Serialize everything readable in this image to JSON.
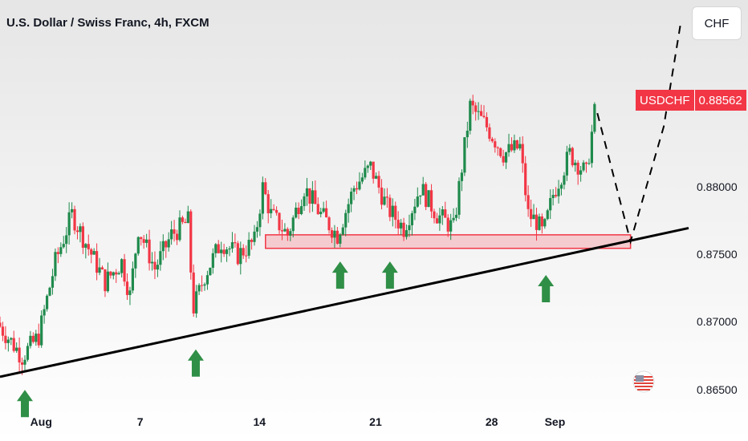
{
  "header": {
    "title": "U.S. Dollar / Swiss Franc, 4h, FXCM"
  },
  "toolbar": {
    "currency_label": "CHF"
  },
  "price_badge": {
    "symbol": "USDCHF",
    "value": "0.88562"
  },
  "colors": {
    "up": "#1f8a4c",
    "down": "#f23645",
    "zone": "#f4a9b0",
    "arrow": "#2f8f46"
  },
  "chart_data": {
    "type": "candlestick",
    "y_axis": {
      "ticks": [
        "0.88000",
        "0.87500",
        "0.87000",
        "0.86500"
      ],
      "tick_values": [
        0.88,
        0.875,
        0.87,
        0.865
      ],
      "ylim": [
        0.8635,
        0.8915
      ]
    },
    "x_axis": {
      "ticks": [
        "Aug",
        "7",
        "14",
        "21",
        "28",
        "Sep"
      ],
      "tick_days": [
        1,
        7,
        14,
        21,
        28,
        32
      ],
      "xlim": [
        -1.5,
        40
      ]
    },
    "path": [
      [
        -1.5,
        0.87
      ],
      [
        0,
        0.8675
      ],
      [
        1,
        0.869
      ],
      [
        2,
        0.8745
      ],
      [
        3,
        0.878
      ],
      [
        4,
        0.8755
      ],
      [
        5,
        0.873
      ],
      [
        6,
        0.8745
      ],
      [
        6.5,
        0.872
      ],
      [
        7,
        0.877
      ],
      [
        8,
        0.874
      ],
      [
        9,
        0.8765
      ],
      [
        10,
        0.8775
      ],
      [
        10.3,
        0.871
      ],
      [
        10.6,
        0.872
      ],
      [
        11,
        0.8735
      ],
      [
        12,
        0.876
      ],
      [
        13,
        0.875
      ],
      [
        14,
        0.876
      ],
      [
        14.5,
        0.88
      ],
      [
        15,
        0.878
      ],
      [
        16,
        0.8765
      ],
      [
        17,
        0.88
      ],
      [
        18,
        0.878
      ],
      [
        19,
        0.8765
      ],
      [
        20,
        0.88
      ],
      [
        21,
        0.8815
      ],
      [
        22,
        0.8785
      ],
      [
        23,
        0.877
      ],
      [
        24,
        0.88
      ],
      [
        25,
        0.878
      ],
      [
        26,
        0.877
      ],
      [
        27,
        0.886
      ],
      [
        28,
        0.8845
      ],
      [
        29,
        0.8825
      ],
      [
        30,
        0.883
      ],
      [
        30.5,
        0.878
      ],
      [
        31,
        0.8775
      ],
      [
        31.4,
        0.8765
      ],
      [
        32,
        0.8795
      ],
      [
        33,
        0.8825
      ],
      [
        34,
        0.881
      ],
      [
        34.5,
        0.8855
      ]
    ],
    "forecast_path": [
      [
        34.5,
        0.8855
      ],
      [
        36.5,
        0.876
      ],
      [
        38.5,
        0.8845
      ],
      [
        39.5,
        0.892
      ]
    ],
    "support_zone": {
      "x": [
        14.5,
        36.5
      ],
      "y": [
        0.8755,
        0.8765
      ]
    },
    "trendline": {
      "x": [
        -1.5,
        40
      ],
      "y": [
        0.866,
        0.877
      ]
    },
    "bounce_points": [
      [
        0,
        0.8655
      ],
      [
        10.3,
        0.8685
      ],
      [
        19,
        0.875
      ],
      [
        22,
        0.875
      ],
      [
        31.4,
        0.874
      ]
    ]
  }
}
